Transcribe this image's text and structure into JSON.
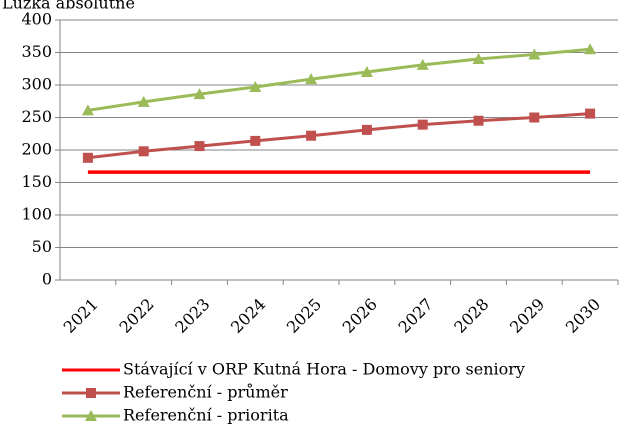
{
  "chart_data": {
    "type": "line",
    "title": "Lůžka absolutně",
    "categories": [
      "2021",
      "2022",
      "2023",
      "2024",
      "2025",
      "2026",
      "2027",
      "2028",
      "2029",
      "2030"
    ],
    "series": [
      {
        "name": "Stávající v ORP Kutná Hora - Domovy pro seniory",
        "color": "#ff0000",
        "marker": "none",
        "values": [
          166,
          166,
          166,
          166,
          166,
          166,
          166,
          166,
          166,
          166
        ]
      },
      {
        "name": "Referenční - průměr",
        "color": "#c0504d",
        "marker": "square",
        "values": [
          188,
          198,
          206,
          214,
          222,
          231,
          239,
          245,
          250,
          256
        ]
      },
      {
        "name": "Referenční - priorita",
        "color": "#9bbb59",
        "marker": "triangle",
        "values": [
          261,
          274,
          286,
          297,
          309,
          320,
          331,
          340,
          347,
          355
        ]
      }
    ],
    "ylim": [
      0,
      400
    ],
    "yticks": [
      0,
      50,
      100,
      150,
      200,
      250,
      300,
      350,
      400
    ],
    "grid": true,
    "legend": "bottom"
  }
}
